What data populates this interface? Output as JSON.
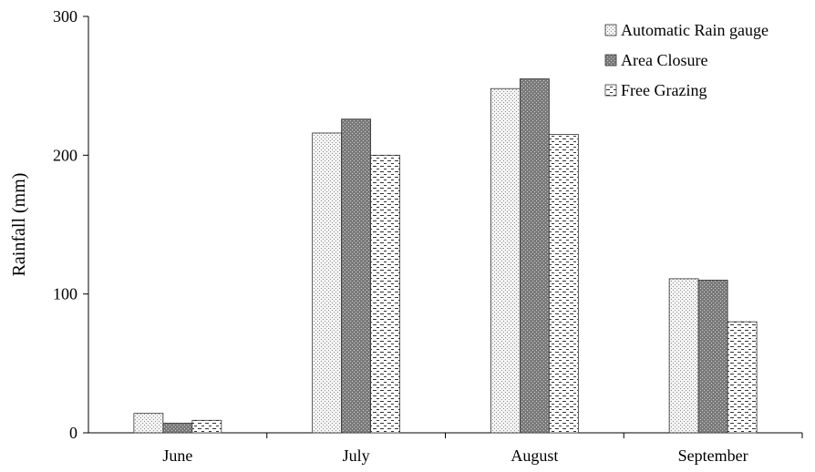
{
  "chart_data": {
    "type": "bar",
    "categories": [
      "June",
      "July",
      "August",
      "September"
    ],
    "series": [
      {
        "name": "Automatic Rain gauge",
        "values": [
          14,
          216,
          248,
          111
        ]
      },
      {
        "name": "Area Closure",
        "values": [
          7,
          226,
          255,
          110
        ]
      },
      {
        "name": "Free Grazing",
        "values": [
          9,
          200,
          215,
          80
        ]
      }
    ],
    "ylabel": "Rainfall (mm)",
    "xlabel": "",
    "ylim": [
      0,
      300
    ],
    "yticks": [
      0,
      100,
      200,
      300
    ],
    "grid": false,
    "legend_position": "top-right"
  }
}
